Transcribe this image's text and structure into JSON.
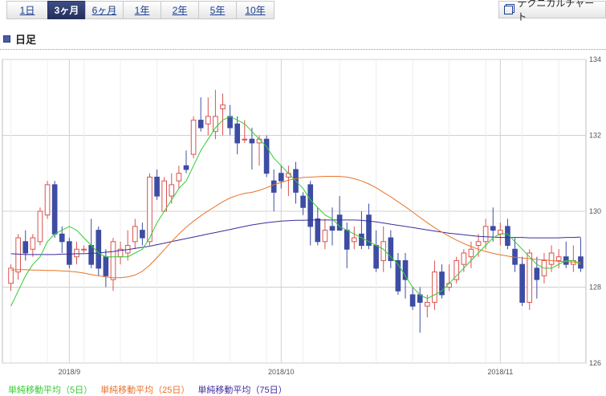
{
  "tabs": [
    "1日",
    "3ヶ月",
    "6ヶ月",
    "1年",
    "2年",
    "5年",
    "10年"
  ],
  "active_tab": "3ヶ月",
  "tech_button": "テクニカルチャート",
  "section_title": "日足",
  "colors": {
    "up": "#d9534f",
    "down": "#3d4da3",
    "ma5": "#33cc33",
    "ma25": "#e8732a",
    "ma75": "#3c2c9c",
    "grid": "#d0d0d0"
  },
  "chart_data": {
    "type": "candlestick",
    "ylim": [
      126,
      134
    ],
    "yticks": [
      126,
      128,
      130,
      132,
      134
    ],
    "xticks": [
      {
        "label": "2018/9",
        "index": 8
      },
      {
        "label": "2018/10",
        "index": 37
      },
      {
        "label": "2018/11",
        "index": 67
      }
    ],
    "legend": [
      "単純移動平均（5日）",
      "単純移動平均（25日）",
      "単純移動平均（75日）"
    ],
    "candles": [
      [
        128.1,
        128.6,
        127.9,
        128.5
      ],
      [
        128.4,
        129.4,
        128.2,
        129.3
      ],
      [
        129.2,
        129.5,
        128.7,
        128.9
      ],
      [
        129.0,
        129.4,
        128.8,
        129.3
      ],
      [
        129.2,
        130.1,
        129.1,
        130.0
      ],
      [
        129.9,
        130.8,
        129.8,
        130.7
      ],
      [
        130.7,
        130.8,
        129.3,
        129.4
      ],
      [
        129.4,
        129.6,
        128.9,
        129.2
      ],
      [
        129.2,
        129.3,
        128.5,
        128.6
      ],
      [
        128.8,
        129.2,
        128.6,
        129.0
      ],
      [
        129.0,
        129.1,
        128.9,
        129.0
      ],
      [
        129.1,
        129.8,
        128.5,
        128.6
      ],
      [
        129.5,
        129.6,
        128.3,
        128.5
      ],
      [
        128.8,
        129.0,
        128.0,
        128.3
      ],
      [
        128.2,
        129.3,
        127.9,
        129.2
      ],
      [
        128.8,
        129.2,
        128.6,
        129.0
      ],
      [
        128.9,
        129.5,
        128.7,
        129.1
      ],
      [
        129.2,
        129.8,
        129.0,
        129.6
      ],
      [
        129.5,
        129.7,
        129.1,
        129.3
      ],
      [
        129.2,
        131.0,
        129.1,
        130.9
      ],
      [
        130.9,
        131.1,
        130.3,
        130.4
      ],
      [
        130.0,
        130.9,
        130.0,
        130.8
      ],
      [
        130.4,
        131.0,
        130.2,
        130.7
      ],
      [
        130.8,
        131.2,
        130.6,
        131.0
      ],
      [
        131.2,
        131.6,
        131.0,
        131.1
      ],
      [
        131.5,
        132.5,
        131.4,
        132.4
      ],
      [
        132.4,
        133.0,
        132.1,
        132.2
      ],
      [
        132.3,
        133.0,
        132.0,
        132.5
      ],
      [
        132.1,
        133.2,
        131.9,
        132.5
      ],
      [
        132.7,
        133.1,
        132.0,
        132.8
      ],
      [
        132.5,
        132.8,
        132.0,
        132.2
      ],
      [
        132.3,
        132.5,
        131.5,
        131.8
      ],
      [
        131.9,
        132.4,
        131.8,
        131.9
      ],
      [
        131.9,
        132.2,
        131.1,
        131.8
      ],
      [
        131.8,
        132.0,
        131.2,
        131.9
      ],
      [
        131.9,
        132.0,
        130.9,
        131.0
      ],
      [
        130.8,
        131.1,
        130.0,
        130.5
      ],
      [
        131.0,
        131.2,
        130.6,
        130.8
      ],
      [
        130.9,
        131.2,
        130.4,
        131.0
      ],
      [
        131.1,
        131.3,
        130.2,
        130.5
      ],
      [
        130.4,
        130.5,
        129.9,
        130.1
      ],
      [
        130.7,
        130.8,
        129.1,
        129.6
      ],
      [
        129.8,
        130.1,
        129.1,
        129.2
      ],
      [
        129.2,
        129.8,
        129.0,
        129.5
      ],
      [
        129.6,
        130.1,
        129.1,
        129.5
      ],
      [
        129.9,
        130.4,
        129.5,
        129.5
      ],
      [
        129.5,
        129.7,
        128.5,
        129.0
      ],
      [
        129.2,
        129.6,
        129.0,
        129.3
      ],
      [
        129.4,
        130.0,
        129.0,
        129.1
      ],
      [
        129.9,
        130.2,
        129.0,
        129.1
      ],
      [
        129.1,
        129.5,
        128.4,
        128.5
      ],
      [
        128.7,
        129.6,
        128.4,
        129.2
      ],
      [
        129.3,
        129.5,
        128.5,
        128.7
      ],
      [
        128.7,
        128.9,
        127.8,
        127.9
      ],
      [
        128.7,
        128.9,
        127.7,
        128.2
      ],
      [
        127.8,
        128.0,
        127.4,
        127.5
      ],
      [
        127.8,
        128.0,
        126.8,
        127.6
      ],
      [
        127.5,
        127.8,
        127.2,
        127.6
      ],
      [
        127.6,
        128.7,
        127.4,
        128.4
      ],
      [
        128.4,
        128.6,
        127.7,
        127.8
      ],
      [
        128.0,
        128.6,
        127.9,
        128.1
      ],
      [
        128.2,
        128.8,
        128.1,
        128.7
      ],
      [
        128.6,
        129.0,
        128.4,
        128.9
      ],
      [
        128.8,
        129.2,
        128.5,
        129.0
      ],
      [
        129.1,
        129.4,
        128.8,
        129.2
      ],
      [
        129.2,
        129.8,
        129.0,
        129.6
      ],
      [
        129.6,
        130.1,
        129.2,
        129.5
      ],
      [
        129.4,
        129.7,
        129.1,
        129.5
      ],
      [
        129.6,
        129.8,
        129.0,
        129.1
      ],
      [
        129.0,
        129.3,
        128.4,
        128.6
      ],
      [
        128.6,
        128.8,
        127.5,
        127.6
      ],
      [
        127.6,
        129.0,
        127.4,
        128.9
      ],
      [
        128.5,
        128.8,
        127.7,
        128.2
      ],
      [
        128.3,
        128.9,
        128.1,
        128.7
      ],
      [
        128.6,
        129.1,
        128.4,
        128.9
      ],
      [
        128.7,
        129.0,
        128.5,
        128.8
      ],
      [
        128.8,
        129.2,
        128.5,
        128.6
      ],
      [
        128.6,
        129.1,
        128.4,
        128.7
      ],
      [
        128.8,
        129.3,
        128.4,
        128.5
      ]
    ],
    "ma5": [
      127.5,
      127.9,
      128.3,
      128.6,
      128.8,
      129.2,
      129.4,
      129.5,
      129.6,
      129.5,
      129.3,
      129.1,
      128.9,
      128.8,
      128.8,
      128.8,
      128.8,
      128.9,
      129.0,
      129.3,
      129.7,
      130.0,
      130.3,
      130.6,
      130.8,
      131.2,
      131.6,
      131.9,
      132.2,
      132.4,
      132.5,
      132.4,
      132.3,
      132.1,
      131.9,
      131.7,
      131.4,
      131.2,
      131.0,
      130.8,
      130.6,
      130.3,
      130.1,
      129.9,
      129.8,
      129.6,
      129.5,
      129.4,
      129.3,
      129.2,
      129.1,
      129.0,
      128.8,
      128.6,
      128.3,
      128.0,
      127.8,
      127.7,
      127.8,
      127.9,
      128.1,
      128.3,
      128.5,
      128.7,
      128.9,
      129.1,
      129.3,
      129.4,
      129.4,
      129.2,
      129.0,
      128.8,
      128.6,
      128.5,
      128.5,
      128.6,
      128.7,
      128.7,
      128.6
    ],
    "ma25": [
      128.45,
      128.46,
      128.46,
      128.45,
      128.45,
      128.44,
      128.44,
      128.43,
      128.42,
      128.4,
      128.37,
      128.33,
      128.3,
      128.27,
      128.25,
      128.25,
      128.27,
      128.32,
      128.42,
      128.58,
      128.78,
      128.99,
      129.2,
      129.4,
      129.58,
      129.74,
      129.88,
      130.01,
      130.13,
      130.25,
      130.35,
      130.42,
      130.47,
      130.5,
      130.55,
      130.62,
      130.7,
      130.76,
      130.82,
      130.86,
      130.89,
      130.9,
      130.91,
      130.92,
      130.92,
      130.92,
      130.9,
      130.86,
      130.8,
      130.72,
      130.62,
      130.5,
      130.38,
      130.25,
      130.12,
      129.98,
      129.84,
      129.7,
      129.57,
      129.45,
      129.34,
      129.24,
      129.15,
      129.07,
      129.0,
      128.94,
      128.89,
      128.85,
      128.82,
      128.79,
      128.77,
      128.75,
      128.73,
      128.72,
      128.7,
      128.68,
      128.67,
      128.66,
      128.65
    ],
    "ma75": [
      128.88,
      128.87,
      128.86,
      128.86,
      128.86,
      128.86,
      128.86,
      128.87,
      128.87,
      128.88,
      128.88,
      128.89,
      128.9,
      128.92,
      128.94,
      128.97,
      128.99,
      129.02,
      129.05,
      129.08,
      129.12,
      129.16,
      129.2,
      129.24,
      129.28,
      129.32,
      129.36,
      129.4,
      129.44,
      129.48,
      129.52,
      129.56,
      129.6,
      129.64,
      129.67,
      129.7,
      129.72,
      129.74,
      129.75,
      129.76,
      129.76,
      129.77,
      129.77,
      129.77,
      129.77,
      129.77,
      129.77,
      129.77,
      129.76,
      129.74,
      129.72,
      129.69,
      129.66,
      129.63,
      129.6,
      129.57,
      129.54,
      129.51,
      129.48,
      129.45,
      129.42,
      129.4,
      129.38,
      129.36,
      129.34,
      129.33,
      129.32,
      129.31,
      129.31,
      129.31,
      129.31,
      129.3,
      129.3,
      129.3,
      129.3,
      129.3,
      129.31,
      129.31,
      129.32
    ]
  }
}
